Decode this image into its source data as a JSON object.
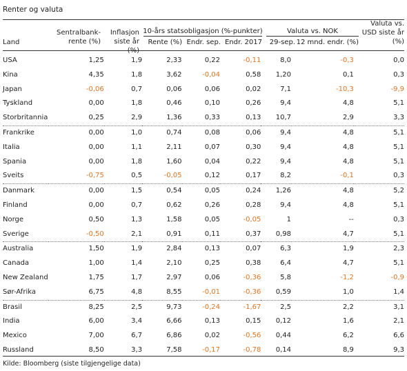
{
  "title": "Renter og valuta",
  "headers": {
    "land": "Land",
    "sentralbank_l1": "Sentralbank-",
    "sentralbank_l2": "rente (%)",
    "inflasjon_l1": "Inflasjon",
    "inflasjon_l2": "siste år (%)",
    "statsobl_group": "10-års statsobligasjon (%-punkter)",
    "rente": "Rente (%)",
    "endr_sep": "Endr. sep.",
    "endr_2017": "Endr. 2017",
    "valuta_group": "Valuta vs. NOK",
    "valuta_29sep": "29-sep.",
    "valuta_12mnd": "12 mnd. endr. (%)",
    "usd_l1": "Valuta vs.",
    "usd_l2": "USD siste år",
    "usd_l3": "(%)"
  },
  "rows": [
    {
      "land": "USA",
      "cells": [
        "1,25",
        "1,9",
        "2,33",
        "0,22",
        "-0,11",
        "8,0",
        "-0,3",
        "0,0"
      ],
      "group_start": false
    },
    {
      "land": "Kina",
      "cells": [
        "4,35",
        "1,8",
        "3,62",
        "-0,04",
        "0,58",
        "1,20",
        "0,1",
        "0,3"
      ],
      "group_start": false
    },
    {
      "land": "Japan",
      "cells": [
        "-0,06",
        "0,7",
        "0,06",
        "0,06",
        "0,02",
        "7,1",
        "-10,3",
        "-9,9"
      ],
      "group_start": false
    },
    {
      "land": "Tyskland",
      "cells": [
        "0,00",
        "1,8",
        "0,46",
        "0,10",
        "0,26",
        "9,4",
        "4,8",
        "5,1"
      ],
      "group_start": false
    },
    {
      "land": "Storbritannia",
      "cells": [
        "0,25",
        "2,9",
        "1,36",
        "0,33",
        "0,13",
        "10,7",
        "2,9",
        "3,3"
      ],
      "group_start": false
    },
    {
      "land": "Frankrike",
      "cells": [
        "0,00",
        "1,0",
        "0,74",
        "0,08",
        "0,06",
        "9,4",
        "4,8",
        "5,1"
      ],
      "group_start": true
    },
    {
      "land": "Italia",
      "cells": [
        "0,00",
        "1,1",
        "2,11",
        "0,07",
        "0,30",
        "9,4",
        "4,8",
        "5,1"
      ],
      "group_start": false
    },
    {
      "land": "Spania",
      "cells": [
        "0,00",
        "1,8",
        "1,60",
        "0,04",
        "0,22",
        "9,4",
        "4,8",
        "5,1"
      ],
      "group_start": false
    },
    {
      "land": "Sveits",
      "cells": [
        "-0,75",
        "0,5",
        "-0,05",
        "0,12",
        "0,17",
        "8,2",
        "-0,1",
        "0,3"
      ],
      "group_start": false
    },
    {
      "land": "Danmark",
      "cells": [
        "0,00",
        "1,5",
        "0,54",
        "0,05",
        "0,24",
        "1,26",
        "4,8",
        "5,2"
      ],
      "group_start": true
    },
    {
      "land": "Finland",
      "cells": [
        "0,00",
        "0,7",
        "0,62",
        "0,26",
        "0,28",
        "9,4",
        "4,8",
        "5,1"
      ],
      "group_start": false
    },
    {
      "land": "Norge",
      "cells": [
        "0,50",
        "1,3",
        "1,58",
        "0,05",
        "-0,05",
        "1",
        "--",
        "0,3"
      ],
      "group_start": false
    },
    {
      "land": "Sverige",
      "cells": [
        "-0,50",
        "2,1",
        "0,91",
        "0,11",
        "0,37",
        "0,98",
        "4,7",
        "5,1"
      ],
      "group_start": false
    },
    {
      "land": "Australia",
      "cells": [
        "1,50",
        "1,9",
        "2,84",
        "0,13",
        "0,07",
        "6,3",
        "1,9",
        "2,3"
      ],
      "group_start": true
    },
    {
      "land": "Canada",
      "cells": [
        "1,00",
        "1,4",
        "2,10",
        "0,25",
        "0,38",
        "6,4",
        "4,7",
        "5,1"
      ],
      "group_start": false
    },
    {
      "land": "New Zealand",
      "cells": [
        "1,75",
        "1,7",
        "2,97",
        "0,06",
        "-0,36",
        "5,8",
        "-1,2",
        "-0,9"
      ],
      "group_start": false
    },
    {
      "land": "Sør-Afrika",
      "cells": [
        "6,75",
        "4,8",
        "8,55",
        "-0,01",
        "-0,36",
        "0,59",
        "1,0",
        "1,4"
      ],
      "group_start": false
    },
    {
      "land": "Brasil",
      "cells": [
        "8,25",
        "2,5",
        "9,73",
        "-0,24",
        "-1,67",
        "2,5",
        "2,2",
        "3,1"
      ],
      "group_start": true
    },
    {
      "land": "India",
      "cells": [
        "6,00",
        "3,4",
        "6,66",
        "0,13",
        "0,15",
        "0,12",
        "1,6",
        "2,1"
      ],
      "group_start": false
    },
    {
      "land": "Mexico",
      "cells": [
        "7,00",
        "6,7",
        "6,86",
        "0,02",
        "-0,56",
        "0,44",
        "6,2",
        "6,6"
      ],
      "group_start": false
    },
    {
      "land": "Russland",
      "cells": [
        "8,50",
        "3,3",
        "7,58",
        "-0,17",
        "-0,78",
        "0,14",
        "8,9",
        "9,3"
      ],
      "group_start": false
    }
  ],
  "source": "Kilde: Bloomberg (siste tilgjengelige data)",
  "colors": {
    "negative": "#e8731a",
    "text": "#222222",
    "rule": "#333333"
  }
}
